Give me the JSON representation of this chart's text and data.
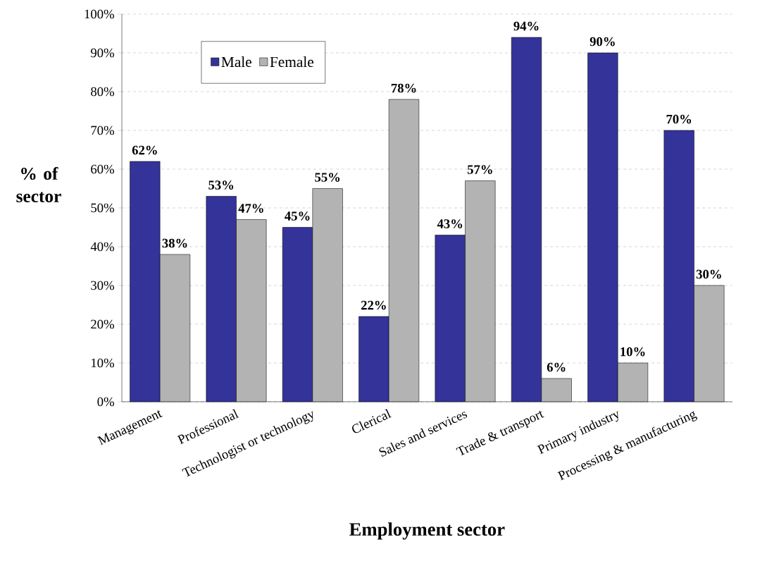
{
  "chart_data": {
    "type": "bar",
    "xlabel": "Employment sector",
    "ylabel": "% of sector",
    "categories": [
      "Management",
      "Professional",
      "Technologist or technology",
      "Clerical",
      "Sales and services",
      "Trade & transport",
      "Primary industry",
      "Processing & manufacturing"
    ],
    "series": [
      {
        "name": "Male",
        "color": "#333399",
        "values": [
          62,
          53,
          45,
          22,
          43,
          94,
          90,
          70
        ],
        "value_labels": [
          "62%",
          "53%",
          "45%",
          "22%",
          "43%",
          "94%",
          "90%",
          "70%"
        ]
      },
      {
        "name": "Female",
        "color": "#b3b3b3",
        "values": [
          38,
          47,
          55,
          78,
          57,
          6,
          10,
          30
        ],
        "value_labels": [
          "38%",
          "47%",
          "55%",
          "78%",
          "57%",
          "6%",
          "10%",
          "30%"
        ]
      }
    ],
    "ylim": [
      0,
      100
    ],
    "yticks": [
      {
        "value": 0,
        "label": "0%"
      },
      {
        "value": 10,
        "label": "10%"
      },
      {
        "value": 20,
        "label": "20%"
      },
      {
        "value": 30,
        "label": "30%"
      },
      {
        "value": 40,
        "label": "40%"
      },
      {
        "value": 50,
        "label": "50%"
      },
      {
        "value": 60,
        "label": "60%"
      },
      {
        "value": 70,
        "label": "70%"
      },
      {
        "value": 80,
        "label": "80%"
      },
      {
        "value": 90,
        "label": "90%"
      },
      {
        "value": 100,
        "label": "100%"
      }
    ],
    "grid": "y",
    "legend": "top left"
  }
}
